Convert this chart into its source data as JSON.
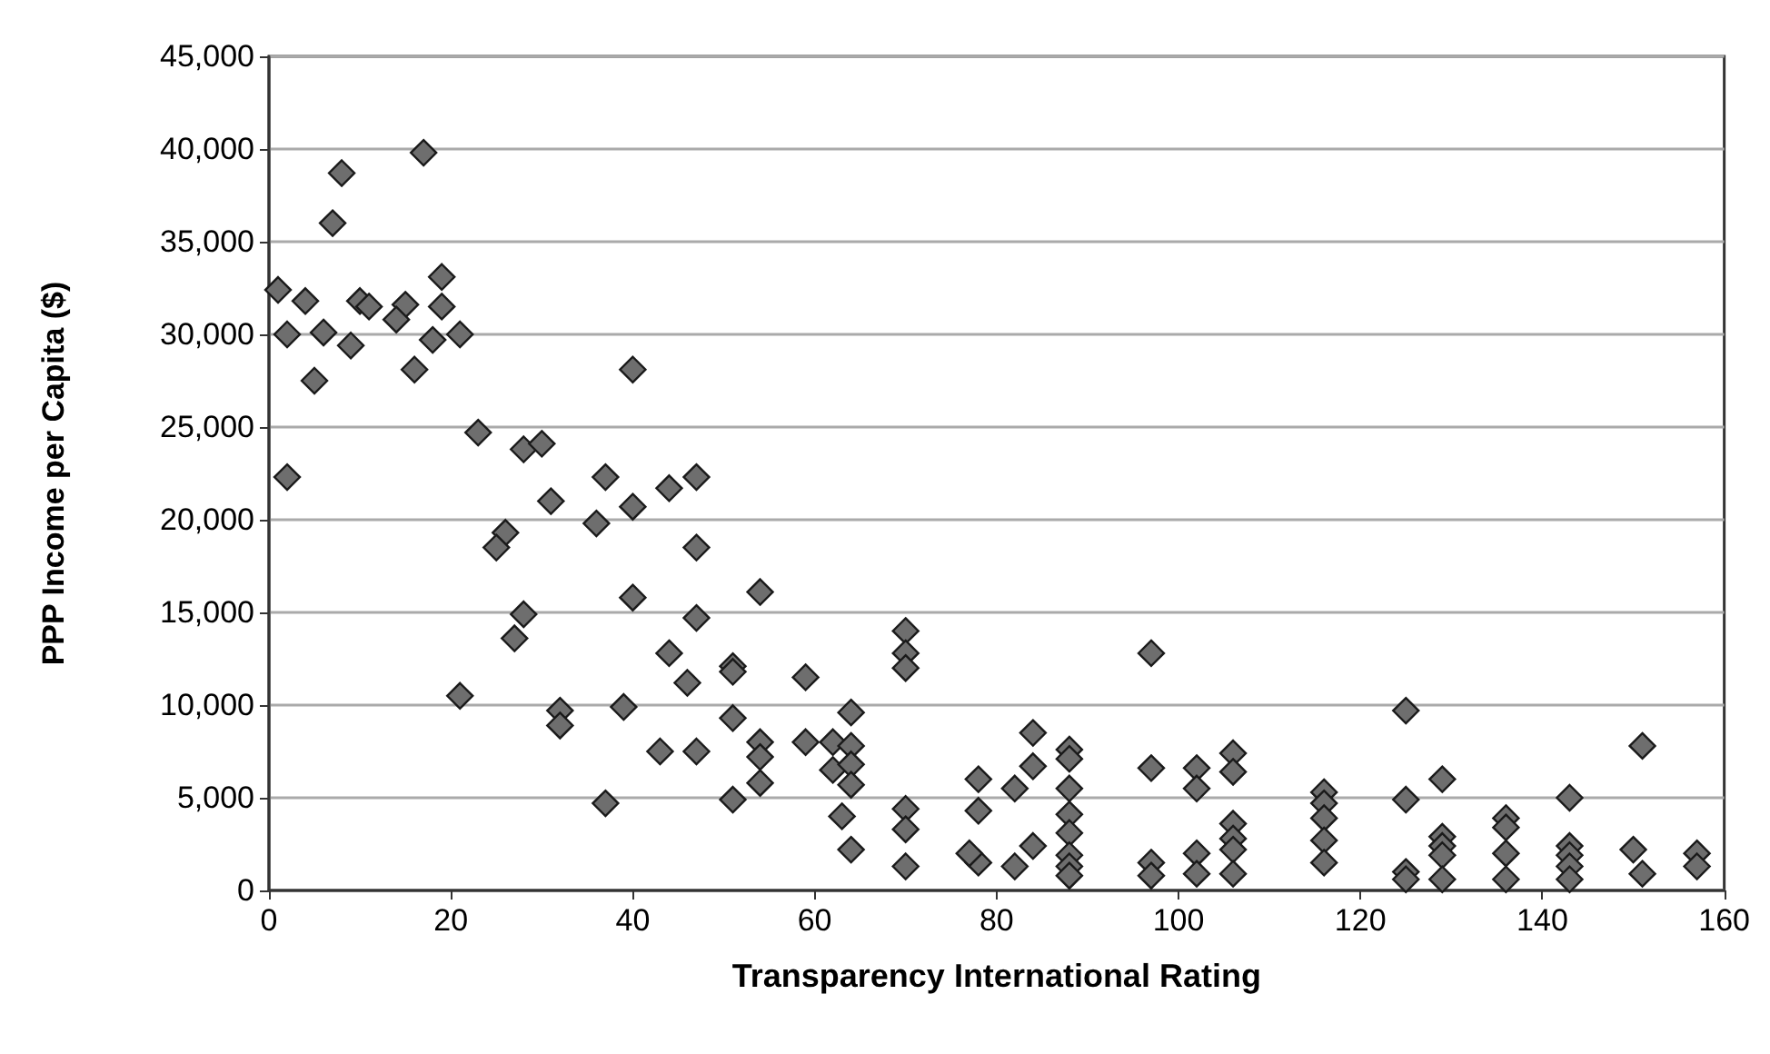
{
  "chart_data": {
    "type": "scatter",
    "xlabel": "Transparency International Rating",
    "ylabel": "PPP Income per Capita ($)",
    "xlim": [
      0,
      160
    ],
    "xticks": [
      0,
      20,
      40,
      60,
      80,
      100,
      120,
      140,
      160
    ],
    "ylim": [
      0,
      45000
    ],
    "yticks": [
      {
        "value": 0,
        "label": "0"
      },
      {
        "value": 5000,
        "label": "5,000"
      },
      {
        "value": 10000,
        "label": "10,000"
      },
      {
        "value": 15000,
        "label": "15,000"
      },
      {
        "value": 20000,
        "label": "20,000"
      },
      {
        "value": 25000,
        "label": "25,000"
      },
      {
        "value": 30000,
        "label": "30,000"
      },
      {
        "value": 35000,
        "label": "35,000"
      },
      {
        "value": 40000,
        "label": "40,000"
      },
      {
        "value": 45000,
        "label": "45,000"
      }
    ],
    "grid": "y",
    "marker": "diamond",
    "series": [
      {
        "color": "#6e6e6e",
        "x": [
          8,
          17,
          7,
          19,
          1,
          4,
          10,
          11,
          15,
          14,
          19,
          2,
          6,
          9,
          18,
          21,
          16,
          5,
          40,
          23,
          28,
          30,
          2,
          37,
          44,
          47,
          31,
          40,
          36,
          26,
          25,
          47,
          54,
          40,
          28,
          47,
          27,
          44,
          51,
          51,
          46,
          21,
          32,
          32,
          39,
          51,
          43,
          47,
          37,
          51,
          54,
          54,
          54,
          59,
          70,
          70,
          70,
          97,
          64,
          62,
          62,
          59,
          64,
          64,
          64,
          64,
          63,
          70,
          70,
          70,
          78,
          78,
          78,
          77,
          82,
          82,
          84,
          84,
          84,
          88,
          88,
          88,
          88,
          88,
          88,
          88,
          88,
          97,
          97,
          97,
          102,
          102,
          102,
          102,
          106,
          106,
          106,
          106,
          106,
          106,
          116,
          116,
          116,
          116,
          116,
          125,
          125,
          125,
          125,
          129,
          129,
          129,
          129,
          129,
          136,
          136,
          136,
          136,
          143,
          143,
          143,
          143,
          143,
          151,
          151,
          150,
          157,
          157
        ],
        "values": [
          38700,
          39800,
          36000,
          33100,
          32400,
          31800,
          31800,
          31500,
          31600,
          30800,
          31500,
          30000,
          30100,
          29400,
          29700,
          30000,
          28100,
          27500,
          28100,
          24700,
          23800,
          24100,
          22300,
          22300,
          21700,
          22300,
          21000,
          20700,
          19800,
          19300,
          18500,
          18500,
          16100,
          15800,
          14900,
          14700,
          13600,
          12800,
          12100,
          11800,
          11200,
          10500,
          9700,
          8900,
          9900,
          9300,
          7500,
          7500,
          4700,
          4900,
          8000,
          7200,
          5800,
          11500,
          14000,
          12800,
          12000,
          12800,
          9600,
          8000,
          6500,
          8000,
          7800,
          6800,
          5700,
          2200,
          4000,
          4400,
          3300,
          1300,
          6000,
          4300,
          1500,
          2000,
          5500,
          1300,
          8500,
          6700,
          2400,
          7600,
          7100,
          5500,
          4100,
          3100,
          1900,
          1300,
          800,
          6600,
          1500,
          800,
          6600,
          5500,
          2000,
          900,
          7400,
          6400,
          3600,
          2800,
          2200,
          900,
          5300,
          4700,
          3900,
          2700,
          1500,
          9700,
          4900,
          1000,
          600,
          6000,
          2900,
          2400,
          1900,
          600,
          3900,
          3400,
          2000,
          600,
          5000,
          2400,
          1900,
          1300,
          600,
          7800,
          900,
          2200,
          2000,
          1300
        ]
      }
    ]
  }
}
